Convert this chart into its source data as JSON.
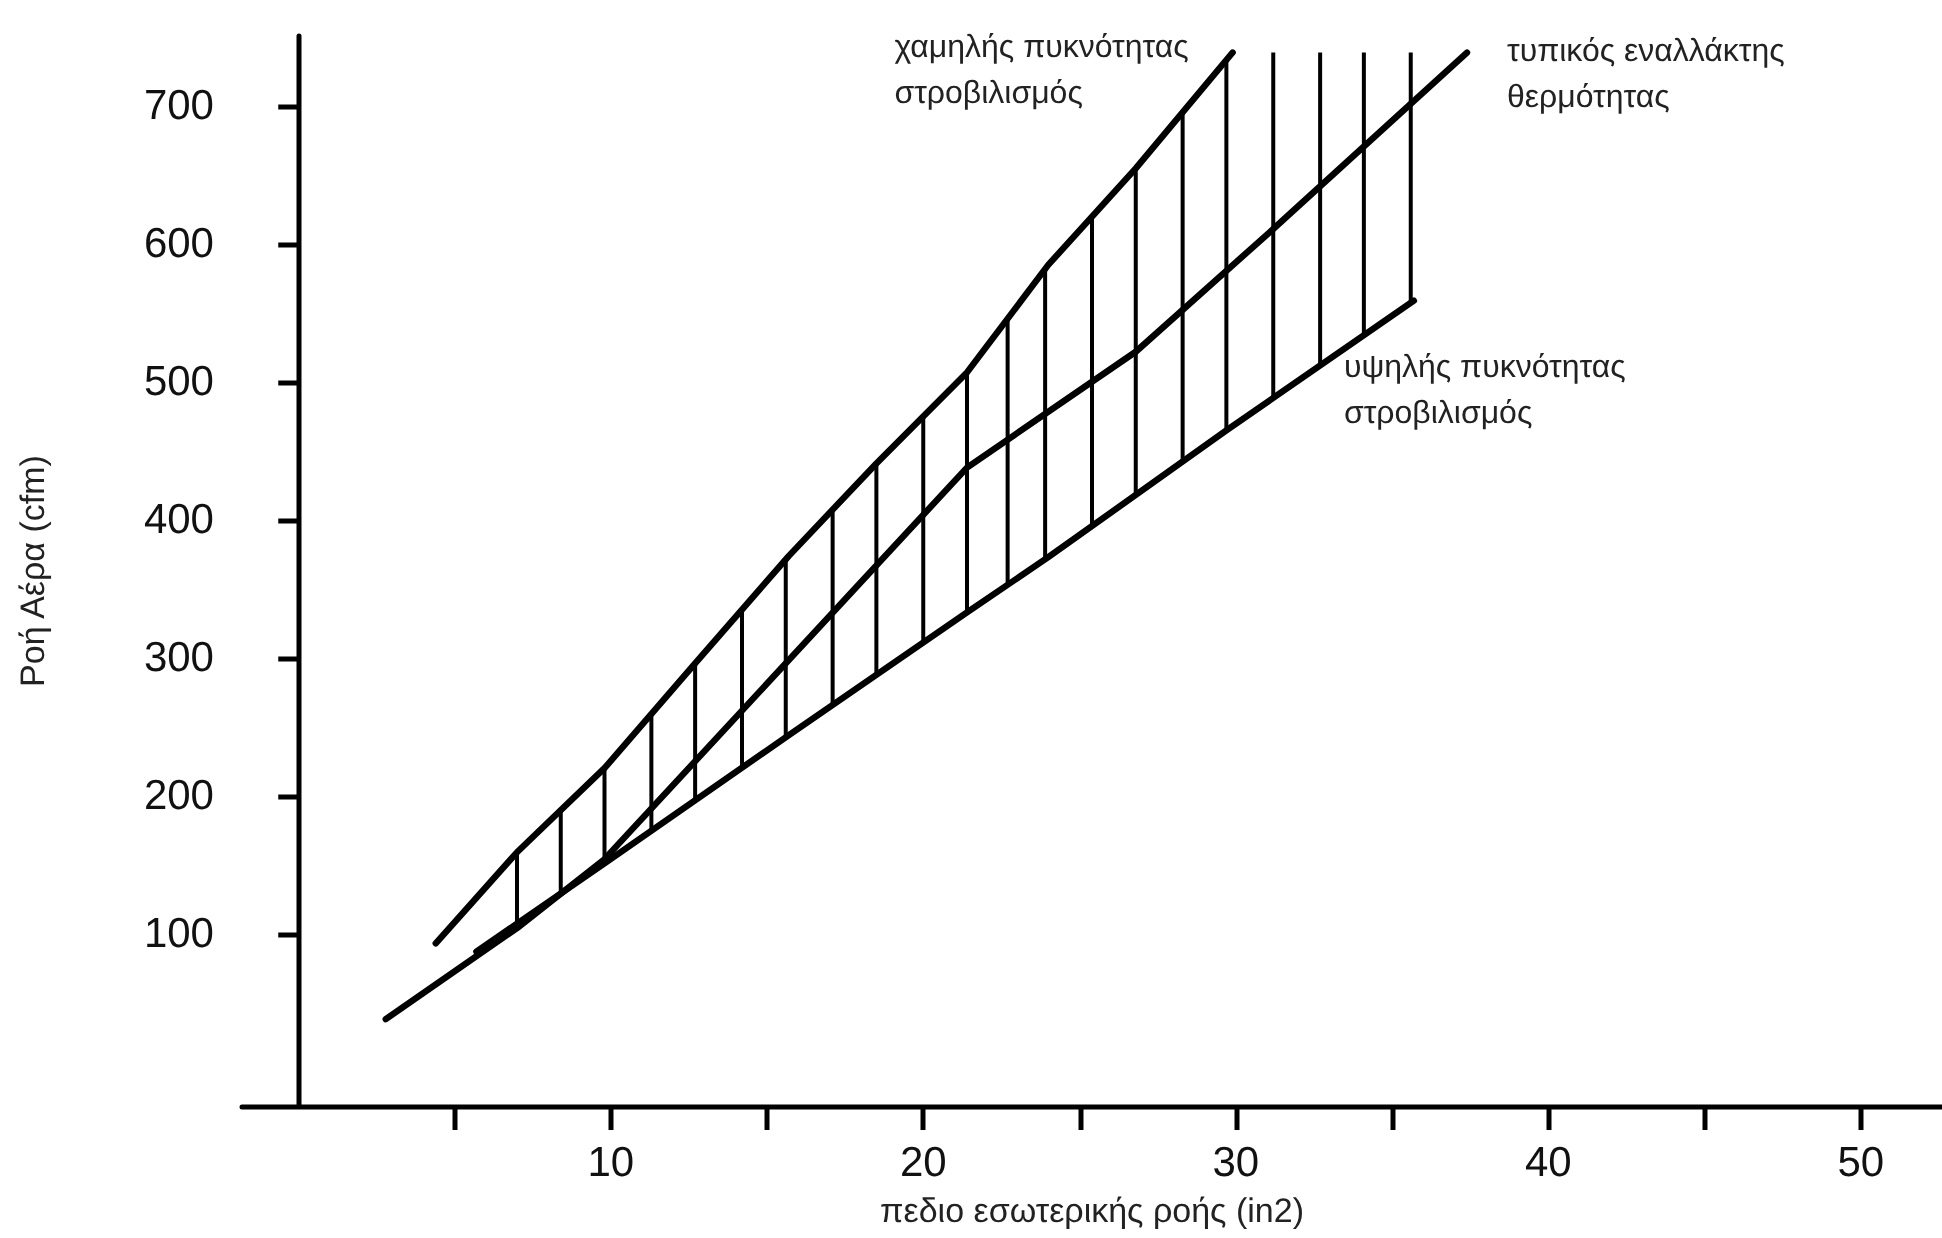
{
  "chart_data": {
    "type": "line",
    "xlabel": "πεδιο εσωτερικής ροής (in2)",
    "ylabel": "Ροή Αέρα (cfm)",
    "xlim": [
      -1.8,
      52.6
    ],
    "ylim": [
      -25,
      751
    ],
    "xticks": [
      {
        "value": 5,
        "label": null
      },
      10,
      {
        "value": 15,
        "label": null
      },
      20,
      {
        "value": 25,
        "label": null
      },
      30,
      {
        "value": 35,
        "label": null
      },
      40,
      {
        "value": 45,
        "label": null
      },
      50
    ],
    "yticks": [
      100,
      200,
      300,
      400,
      500,
      600,
      700
    ],
    "grid": false,
    "legend": false,
    "marker": "none",
    "line_style": "solid",
    "series": [
      {
        "name": "χαμηλής πυκνότητας στροβιλισμός",
        "color": "#000000",
        "x": [
          4.4,
          7.0,
          9.8,
          12.7,
          15.7,
          18.5,
          21.4,
          24.0,
          26.8,
          29.9
        ],
        "values": [
          93,
          159,
          220,
          296,
          374,
          441,
          507,
          585,
          655,
          739
        ]
      },
      {
        "name": "τυπικός εναλλάκτης θερμότητας",
        "color": "#000000",
        "x": [
          2.8,
          7.0,
          9.8,
          21.4,
          26.8,
          31.1,
          37.4
        ],
        "values": [
          38,
          104,
          154,
          438,
          522,
          609,
          739
        ]
      },
      {
        "name": "υψηλής πυκνότητας στροβιλισμός",
        "color": "#000000",
        "x": [
          5.7,
          9.8,
          15.7,
          21.4,
          24.0,
          29.7,
          35.7
        ],
        "values": [
          87,
          151,
          244,
          333,
          373,
          465,
          559
        ]
      },
      {
        "type": "bar",
        "color": "#000000",
        "x": [
          7.0,
          8.4,
          9.8,
          11.3,
          12.7,
          14.2,
          15.6,
          17.1,
          18.5,
          20.0,
          21.4,
          22.7,
          23.9,
          25.4,
          26.8,
          28.3,
          29.7,
          31.2,
          32.7,
          34.1,
          35.6
        ],
        "base": [
          107,
          129,
          151,
          175,
          197,
          220,
          242,
          266,
          288,
          311,
          333,
          354,
          373,
          396,
          418,
          442,
          465,
          488,
          512,
          533,
          556
        ],
        "values": [
          52,
          60,
          69,
          84,
          99,
          115,
          129,
          141,
          153,
          164,
          174,
          192,
          209,
          224,
          237,
          254,
          269,
          251,
          227,
          206,
          183
        ]
      }
    ]
  }
}
